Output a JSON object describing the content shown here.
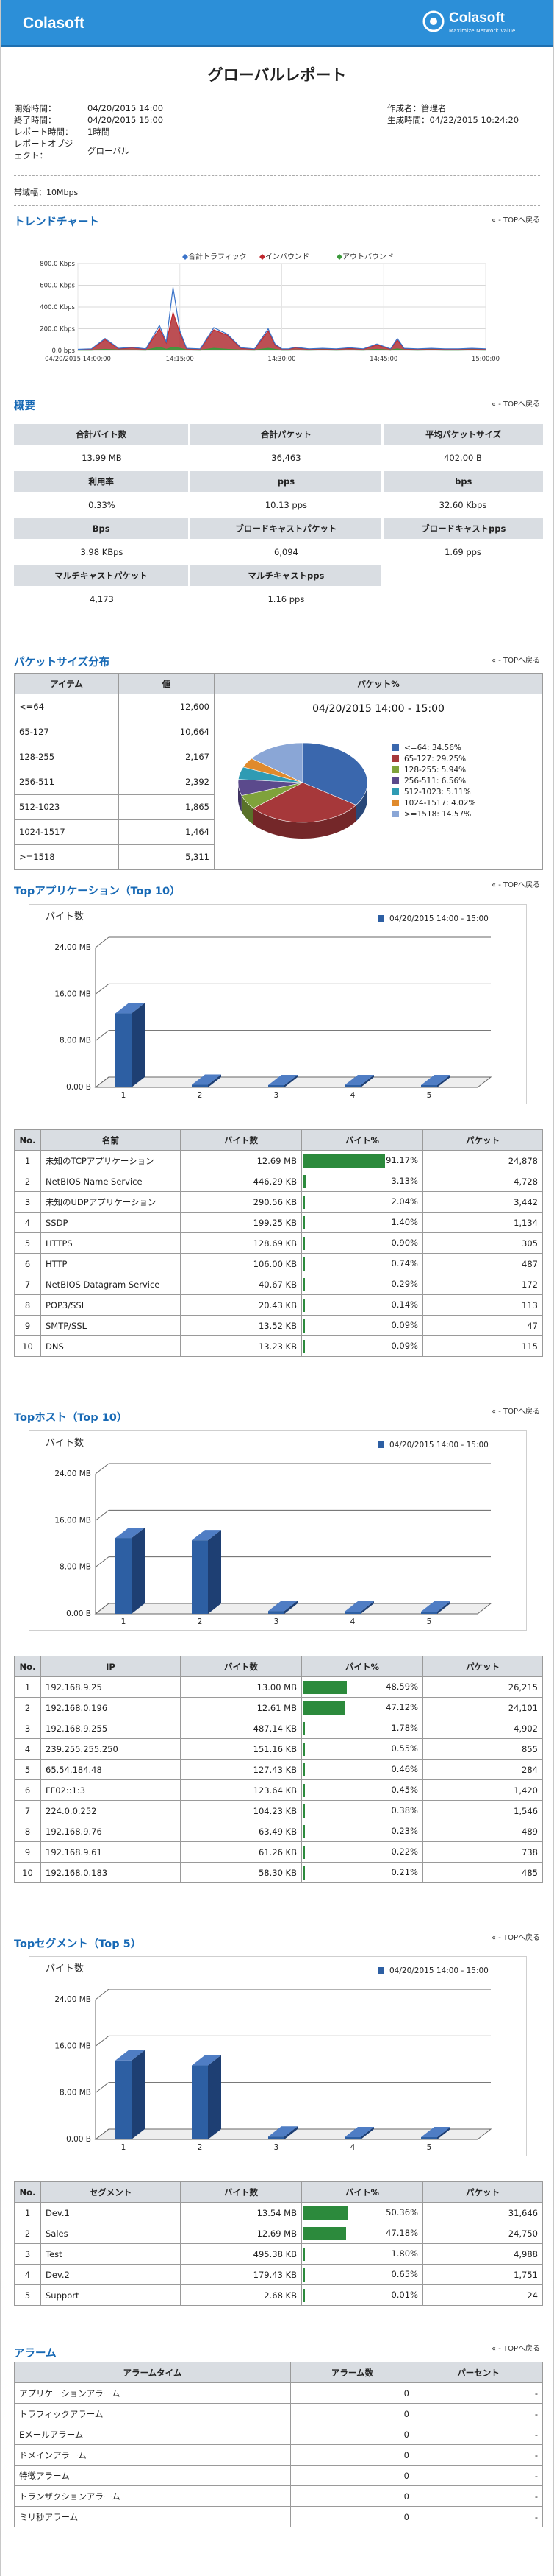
{
  "header": {
    "brand": "Colasoft",
    "logo_name": "Colasoft",
    "logo_sub": "Maximize Network Value"
  },
  "report_title": "グローバルレポート",
  "meta": {
    "start_label": "開始時間：",
    "start_value": "04/20/2015 14:00",
    "end_label": "終了時間：",
    "end_value": "04/20/2015 15:00",
    "report_time_label": "レポート時間：",
    "report_time_value": "1時間",
    "object_label": "レポートオブジェクト：",
    "object_value": "グローバル",
    "author_label": "作成者：",
    "author_value": "管理者",
    "generated_label": "生成時間：",
    "generated_value": "04/22/2015 10:24:20",
    "bandwidth": "帯域幅：10Mbps"
  },
  "to_top": "TOPへ戻る",
  "trend": {
    "title": "トレンドチャート",
    "legend": [
      "合計トラフィック",
      "インバウンド",
      "アウトバウンド"
    ],
    "colors": [
      "#3a73c9",
      "#c0282e",
      "#3c9a3c"
    ]
  },
  "summary": {
    "title": "概要",
    "rows": [
      [
        {
          "label": "合計バイト数",
          "value": "13.99 MB"
        },
        {
          "label": "合計パケット",
          "value": "36,463"
        },
        {
          "label": "平均パケットサイズ",
          "value": "402.00 B"
        }
      ],
      [
        {
          "label": "利用率",
          "value": "0.33%"
        },
        {
          "label": "pps",
          "value": "10.13 pps"
        },
        {
          "label": "bps",
          "value": "32.60 Kbps"
        }
      ],
      [
        {
          "label": "Bps",
          "value": "3.98 KBps"
        },
        {
          "label": "ブロードキャストパケット",
          "value": "6,094"
        },
        {
          "label": "ブロードキャストpps",
          "value": "1.69 pps"
        }
      ],
      [
        {
          "label": "マルチキャストパケット",
          "value": "4,173"
        },
        {
          "label": "マルチキャストpps",
          "value": "1.16 pps"
        }
      ]
    ]
  },
  "packet_size": {
    "title": "パケットサイズ分布",
    "headers": [
      "アイテム",
      "値",
      "パケット%"
    ],
    "chart_title": "04/20/2015  14:00 - 15:00",
    "rows": [
      {
        "item": "<=64",
        "value": "12,600"
      },
      {
        "item": "65-127",
        "value": "10,664"
      },
      {
        "item": "128-255",
        "value": "2,167"
      },
      {
        "item": "256-511",
        "value": "2,392"
      },
      {
        "item": "512-1023",
        "value": "1,865"
      },
      {
        "item": "1024-1517",
        "value": "1,464"
      },
      {
        "item": ">=1518",
        "value": "5,311"
      }
    ],
    "legend": [
      "<=64: 34.56%",
      "65-127: 29.25%",
      "128-255: 5.94%",
      "256-511: 6.56%",
      "512-1023: 5.11%",
      "1024-1517: 4.02%",
      ">=1518: 14.57%"
    ],
    "colors": [
      "#3a67ad",
      "#a6383a",
      "#7fa23b",
      "#5b4a8c",
      "#2f9bb3",
      "#e08a2c",
      "#8aa6d6"
    ]
  },
  "top_apps": {
    "title": "Topアプリケーション（Top 10）",
    "headers": [
      "No.",
      "名前",
      "バイト数",
      "バイト%",
      "パケット"
    ],
    "rows": [
      {
        "no": "1",
        "name": "未知のTCPアプリケーション",
        "bytes": "12.69 MB",
        "pct": "91.17%",
        "packets": "24,878"
      },
      {
        "no": "2",
        "name": "NetBIOS Name Service",
        "bytes": "446.29 KB",
        "pct": "3.13%",
        "packets": "4,728"
      },
      {
        "no": "3",
        "name": "未知のUDPアプリケーション",
        "bytes": "290.56 KB",
        "pct": "2.04%",
        "packets": "3,442"
      },
      {
        "no": "4",
        "name": "SSDP",
        "bytes": "199.25 KB",
        "pct": "1.40%",
        "packets": "1,134"
      },
      {
        "no": "5",
        "name": "HTTPS",
        "bytes": "128.69 KB",
        "pct": "0.90%",
        "packets": "305"
      },
      {
        "no": "6",
        "name": "HTTP",
        "bytes": "106.00 KB",
        "pct": "0.74%",
        "packets": "487"
      },
      {
        "no": "7",
        "name": "NetBIOS Datagram Service",
        "bytes": "40.67 KB",
        "pct": "0.29%",
        "packets": "172"
      },
      {
        "no": "8",
        "name": "POP3/SSL",
        "bytes": "20.43 KB",
        "pct": "0.14%",
        "packets": "113"
      },
      {
        "no": "9",
        "name": "SMTP/SSL",
        "bytes": "13.52 KB",
        "pct": "0.09%",
        "packets": "47"
      },
      {
        "no": "10",
        "name": "DNS",
        "bytes": "13.23 KB",
        "pct": "0.09%",
        "packets": "115"
      }
    ]
  },
  "top_hosts": {
    "title": "Topホスト（Top 10）",
    "headers": [
      "No.",
      "IP",
      "バイト数",
      "バイト%",
      "パケット"
    ],
    "rows": [
      {
        "no": "1",
        "name": "192.168.9.25",
        "bytes": "13.00 MB",
        "pct": "48.59%",
        "packets": "26,215"
      },
      {
        "no": "2",
        "name": "192.168.0.196",
        "bytes": "12.61 MB",
        "pct": "47.12%",
        "packets": "24,101"
      },
      {
        "no": "3",
        "name": "192.168.9.255",
        "bytes": "487.14 KB",
        "pct": "1.78%",
        "packets": "4,902"
      },
      {
        "no": "4",
        "name": "239.255.255.250",
        "bytes": "151.16 KB",
        "pct": "0.55%",
        "packets": "855"
      },
      {
        "no": "5",
        "name": "65.54.184.48",
        "bytes": "127.43 KB",
        "pct": "0.46%",
        "packets": "284"
      },
      {
        "no": "6",
        "name": "FF02::1:3",
        "bytes": "123.64 KB",
        "pct": "0.45%",
        "packets": "1,420"
      },
      {
        "no": "7",
        "name": "224.0.0.252",
        "bytes": "104.23 KB",
        "pct": "0.38%",
        "packets": "1,546"
      },
      {
        "no": "8",
        "name": "192.168.9.76",
        "bytes": "63.49 KB",
        "pct": "0.23%",
        "packets": "489"
      },
      {
        "no": "9",
        "name": "192.168.9.61",
        "bytes": "61.26 KB",
        "pct": "0.22%",
        "packets": "738"
      },
      {
        "no": "10",
        "name": "192.168.0.183",
        "bytes": "58.30 KB",
        "pct": "0.21%",
        "packets": "485"
      }
    ]
  },
  "top_segments": {
    "title": "Topセグメント（Top 5）",
    "headers": [
      "No.",
      "セグメント",
      "バイト数",
      "バイト%",
      "パケット"
    ],
    "rows": [
      {
        "no": "1",
        "name": "Dev.1",
        "bytes": "13.54 MB",
        "pct": "50.36%",
        "packets": "31,646"
      },
      {
        "no": "2",
        "name": "Sales",
        "bytes": "12.69 MB",
        "pct": "47.18%",
        "packets": "24,750"
      },
      {
        "no": "3",
        "name": "Test",
        "bytes": "495.38 KB",
        "pct": "1.80%",
        "packets": "4,988"
      },
      {
        "no": "4",
        "name": "Dev.2",
        "bytes": "179.43 KB",
        "pct": "0.65%",
        "packets": "1,751"
      },
      {
        "no": "5",
        "name": "Support",
        "bytes": "2.68 KB",
        "pct": "0.01%",
        "packets": "24"
      }
    ]
  },
  "alarms": {
    "title": "アラーム",
    "headers": [
      "アラームタイム",
      "アラーム数",
      "パーセント"
    ],
    "rows": [
      {
        "type": "アプリケーションアラーム",
        "count": "0",
        "pct": "-"
      },
      {
        "type": "トラフィックアラーム",
        "count": "0",
        "pct": "-"
      },
      {
        "type": "Eメールアラーム",
        "count": "0",
        "pct": "-"
      },
      {
        "type": "ドメインアラーム",
        "count": "0",
        "pct": "-"
      },
      {
        "type": "特徴アラーム",
        "count": "0",
        "pct": "-"
      },
      {
        "type": "トランザクションアラーム",
        "count": "0",
        "pct": "-"
      },
      {
        "type": "ミリ秒アラーム",
        "count": "0",
        "pct": "-"
      }
    ]
  },
  "chart_data": [
    {
      "type": "line",
      "title": "トレンドチャート",
      "ylabel": "",
      "xlabel": "",
      "yticks": [
        "0.0 bps",
        "200.0 Kbps",
        "400.0 Kbps",
        "600.0 Kbps",
        "800.0 Kbps"
      ],
      "xticks": [
        "04/20/2015 14:00:00",
        "14:15:00",
        "14:30:00",
        "14:45:00",
        "15:00:00"
      ],
      "ylim": [
        0,
        800
      ],
      "x_minutes": [
        0,
        2,
        4,
        6,
        8,
        10,
        12,
        13,
        14,
        15,
        16,
        18,
        20,
        22,
        24,
        26,
        28,
        29,
        30,
        31,
        32,
        34,
        36,
        38,
        40,
        42,
        44,
        46,
        47,
        48,
        50,
        52,
        54,
        56,
        58,
        60
      ],
      "series": [
        {
          "name": "合計トラフィック",
          "values": [
            10,
            15,
            110,
            20,
            30,
            15,
            230,
            80,
            580,
            180,
            20,
            15,
            210,
            150,
            25,
            15,
            200,
            60,
            15,
            15,
            30,
            15,
            20,
            15,
            25,
            15,
            60,
            15,
            110,
            20,
            15,
            20,
            15,
            15,
            20,
            15
          ]
        },
        {
          "name": "インバウンド",
          "values": [
            8,
            12,
            100,
            15,
            25,
            12,
            200,
            70,
            350,
            160,
            15,
            12,
            190,
            140,
            20,
            12,
            180,
            50,
            12,
            12,
            25,
            12,
            15,
            12,
            20,
            12,
            50,
            12,
            95,
            15,
            12,
            15,
            12,
            12,
            15,
            12
          ]
        },
        {
          "name": "アウトバウンド",
          "values": [
            2,
            3,
            10,
            5,
            5,
            3,
            30,
            10,
            30,
            20,
            5,
            3,
            20,
            10,
            5,
            3,
            20,
            10,
            3,
            3,
            5,
            3,
            5,
            3,
            5,
            3,
            10,
            3,
            15,
            5,
            3,
            5,
            3,
            3,
            5,
            3
          ]
        }
      ]
    },
    {
      "type": "pie",
      "title": "04/20/2015  14:00 - 15:00",
      "categories": [
        "<=64",
        "65-127",
        "128-255",
        "256-511",
        "512-1023",
        "1024-1517",
        ">=1518"
      ],
      "values": [
        34.56,
        29.25,
        5.94,
        6.56,
        5.11,
        4.02,
        14.57
      ]
    },
    {
      "type": "bar",
      "title": "Topアプリケーション",
      "ylabel": "バイト数",
      "legend": "04/20/2015  14:00 - 15:00",
      "categories": [
        "1",
        "2",
        "3",
        "4",
        "5"
      ],
      "values": [
        12.69,
        0.44,
        0.28,
        0.19,
        0.13
      ],
      "yticks": [
        "0.00 B",
        "8.00 MB",
        "16.00 MB",
        "24.00 MB"
      ],
      "ylim": [
        0,
        24
      ]
    },
    {
      "type": "bar",
      "title": "Topホスト",
      "ylabel": "バイト数",
      "legend": "04/20/2015  14:00 - 15:00",
      "categories": [
        "1",
        "2",
        "3",
        "4",
        "5"
      ],
      "values": [
        13.0,
        12.61,
        0.48,
        0.15,
        0.12
      ],
      "yticks": [
        "0.00 B",
        "8.00 MB",
        "16.00 MB",
        "24.00 MB"
      ],
      "ylim": [
        0,
        24
      ]
    },
    {
      "type": "bar",
      "title": "Topセグメント",
      "ylabel": "バイト数",
      "legend": "04/20/2015  14:00 - 15:00",
      "categories": [
        "1",
        "2",
        "3",
        "4",
        "5"
      ],
      "values": [
        13.54,
        12.69,
        0.48,
        0.18,
        0.003
      ],
      "yticks": [
        "0.00 B",
        "8.00 MB",
        "16.00 MB",
        "24.00 MB"
      ],
      "ylim": [
        0,
        24
      ]
    }
  ]
}
